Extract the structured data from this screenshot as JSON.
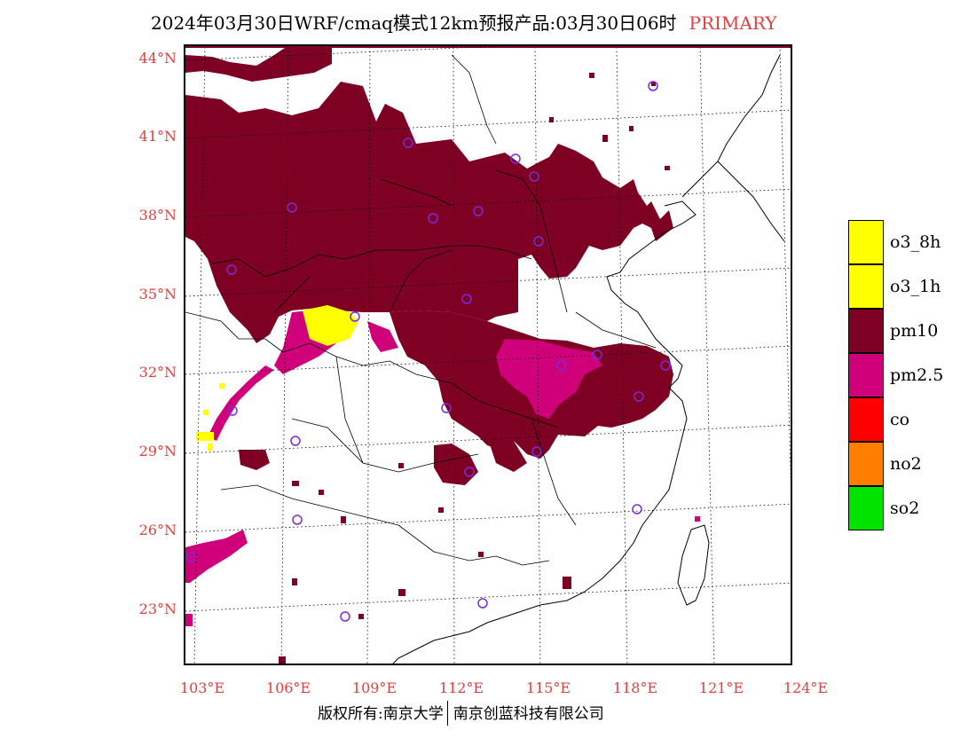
{
  "title": {
    "main": "2024年03月30日WRF/cmaq模式12km预报产品:03月30日06时",
    "tag": "PRIMARY",
    "tag_color": "#e04040"
  },
  "axes": {
    "lat_labels": [
      "44°N",
      "41°N",
      "38°N",
      "35°N",
      "32°N",
      "29°N",
      "26°N",
      "23°N"
    ],
    "lon_labels": [
      "103°E",
      "106°E",
      "109°E",
      "112°E",
      "115°E",
      "118°E",
      "121°E",
      "124°E"
    ],
    "label_color": "#e04040"
  },
  "legend": {
    "items": [
      {
        "label": "o3_8h",
        "color": "#ffff00"
      },
      {
        "label": "o3_1h",
        "color": "#ffff00"
      },
      {
        "label": "pm10",
        "color": "#7e0023"
      },
      {
        "label": "pm2.5",
        "color": "#d0007a"
      },
      {
        "label": "co",
        "color": "#ff0000"
      },
      {
        "label": "no2",
        "color": "#ff7e00"
      },
      {
        "label": "so2",
        "color": "#00e400"
      }
    ]
  },
  "map": {
    "pollutant_colors": {
      "pm10": "#7e0023",
      "pm25": "#d0007a",
      "o3": "#ffff00"
    },
    "station_marker": "circle-outline",
    "station_color": "#7a2be0"
  },
  "footer": {
    "left": "版权所有:南京大学",
    "right": "南京创蓝科技有限公司"
  }
}
